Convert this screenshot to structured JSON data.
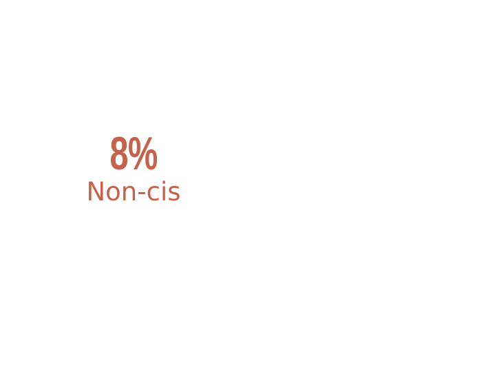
{
  "stat": {
    "value": "8%",
    "label": "Non-cis",
    "color": "#c5634a"
  }
}
